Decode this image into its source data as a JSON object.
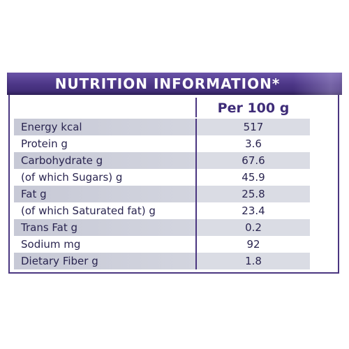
{
  "header": {
    "title": "NUTRITION INFORMATION*"
  },
  "table": {
    "column_header": "Per 100 g",
    "rows": [
      {
        "label": "Energy kcal",
        "value": "517"
      },
      {
        "label": "Protein g",
        "value": "3.6"
      },
      {
        "label": "Carbohydrate g",
        "value": "67.6"
      },
      {
        "label": "(of which Sugars) g",
        "value": "45.9"
      },
      {
        "label": "Fat g",
        "value": "25.8"
      },
      {
        "label": "(of which Saturated fat) g",
        "value": "23.4"
      },
      {
        "label": "Trans Fat g",
        "value": "0.2"
      },
      {
        "label": "Sodium mg",
        "value": "92"
      },
      {
        "label": "Dietary Fiber g",
        "value": "1.8"
      }
    ]
  },
  "colors": {
    "header_purple": "#4b3585",
    "border_purple": "#4a3680",
    "row_shade": "#d3d5df",
    "text": "#2a2550"
  }
}
